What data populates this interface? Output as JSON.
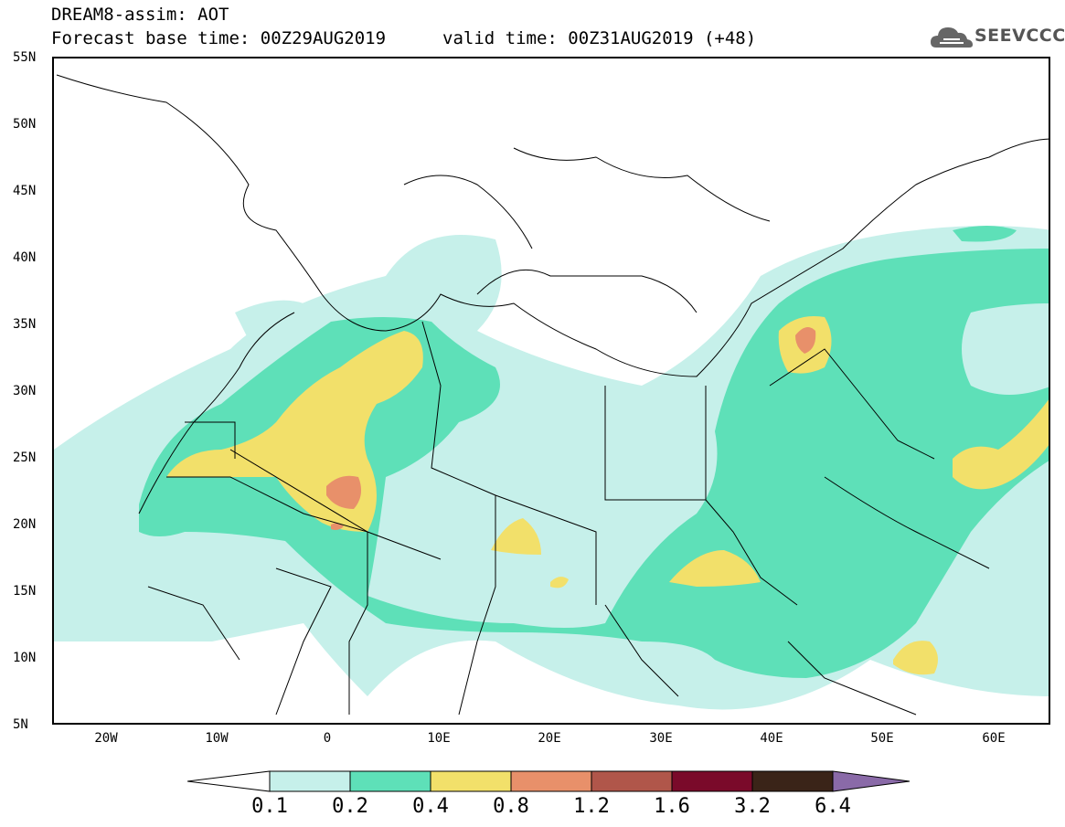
{
  "header": {
    "title": "DREAM8-assim: AOT",
    "base_time": "Forecast base time: 00Z29AUG2019",
    "valid_time": "valid time: 00Z31AUG2019 (+48)"
  },
  "logo": {
    "text": "SEEVCCC",
    "icon": "cloud-logo-icon"
  },
  "axes": {
    "lat_labels": [
      "55N",
      "50N",
      "45N",
      "40N",
      "35N",
      "30N",
      "25N",
      "20N",
      "15N",
      "10N",
      "5N"
    ],
    "lon_labels": [
      "20W",
      "10W",
      "0",
      "10E",
      "20E",
      "30E",
      "40E",
      "50E",
      "60E"
    ]
  },
  "colorbar": {
    "labels": [
      "0.1",
      "0.2",
      "0.4",
      "0.8",
      "1.2",
      "1.6",
      "3.2",
      "6.4"
    ],
    "colors": [
      "#ffffff",
      "#c6f0ea",
      "#5ee0b8",
      "#f2e06a",
      "#e8906a",
      "#b0564a",
      "#7a0a2a",
      "#3a2418",
      "#8a6aa8"
    ]
  },
  "colors": {
    "level_0.1": "#c6f0ea",
    "level_0.2": "#5ee0b8",
    "level_0.4": "#f2e06a",
    "level_0.8": "#e8906a",
    "border": "#000000"
  }
}
